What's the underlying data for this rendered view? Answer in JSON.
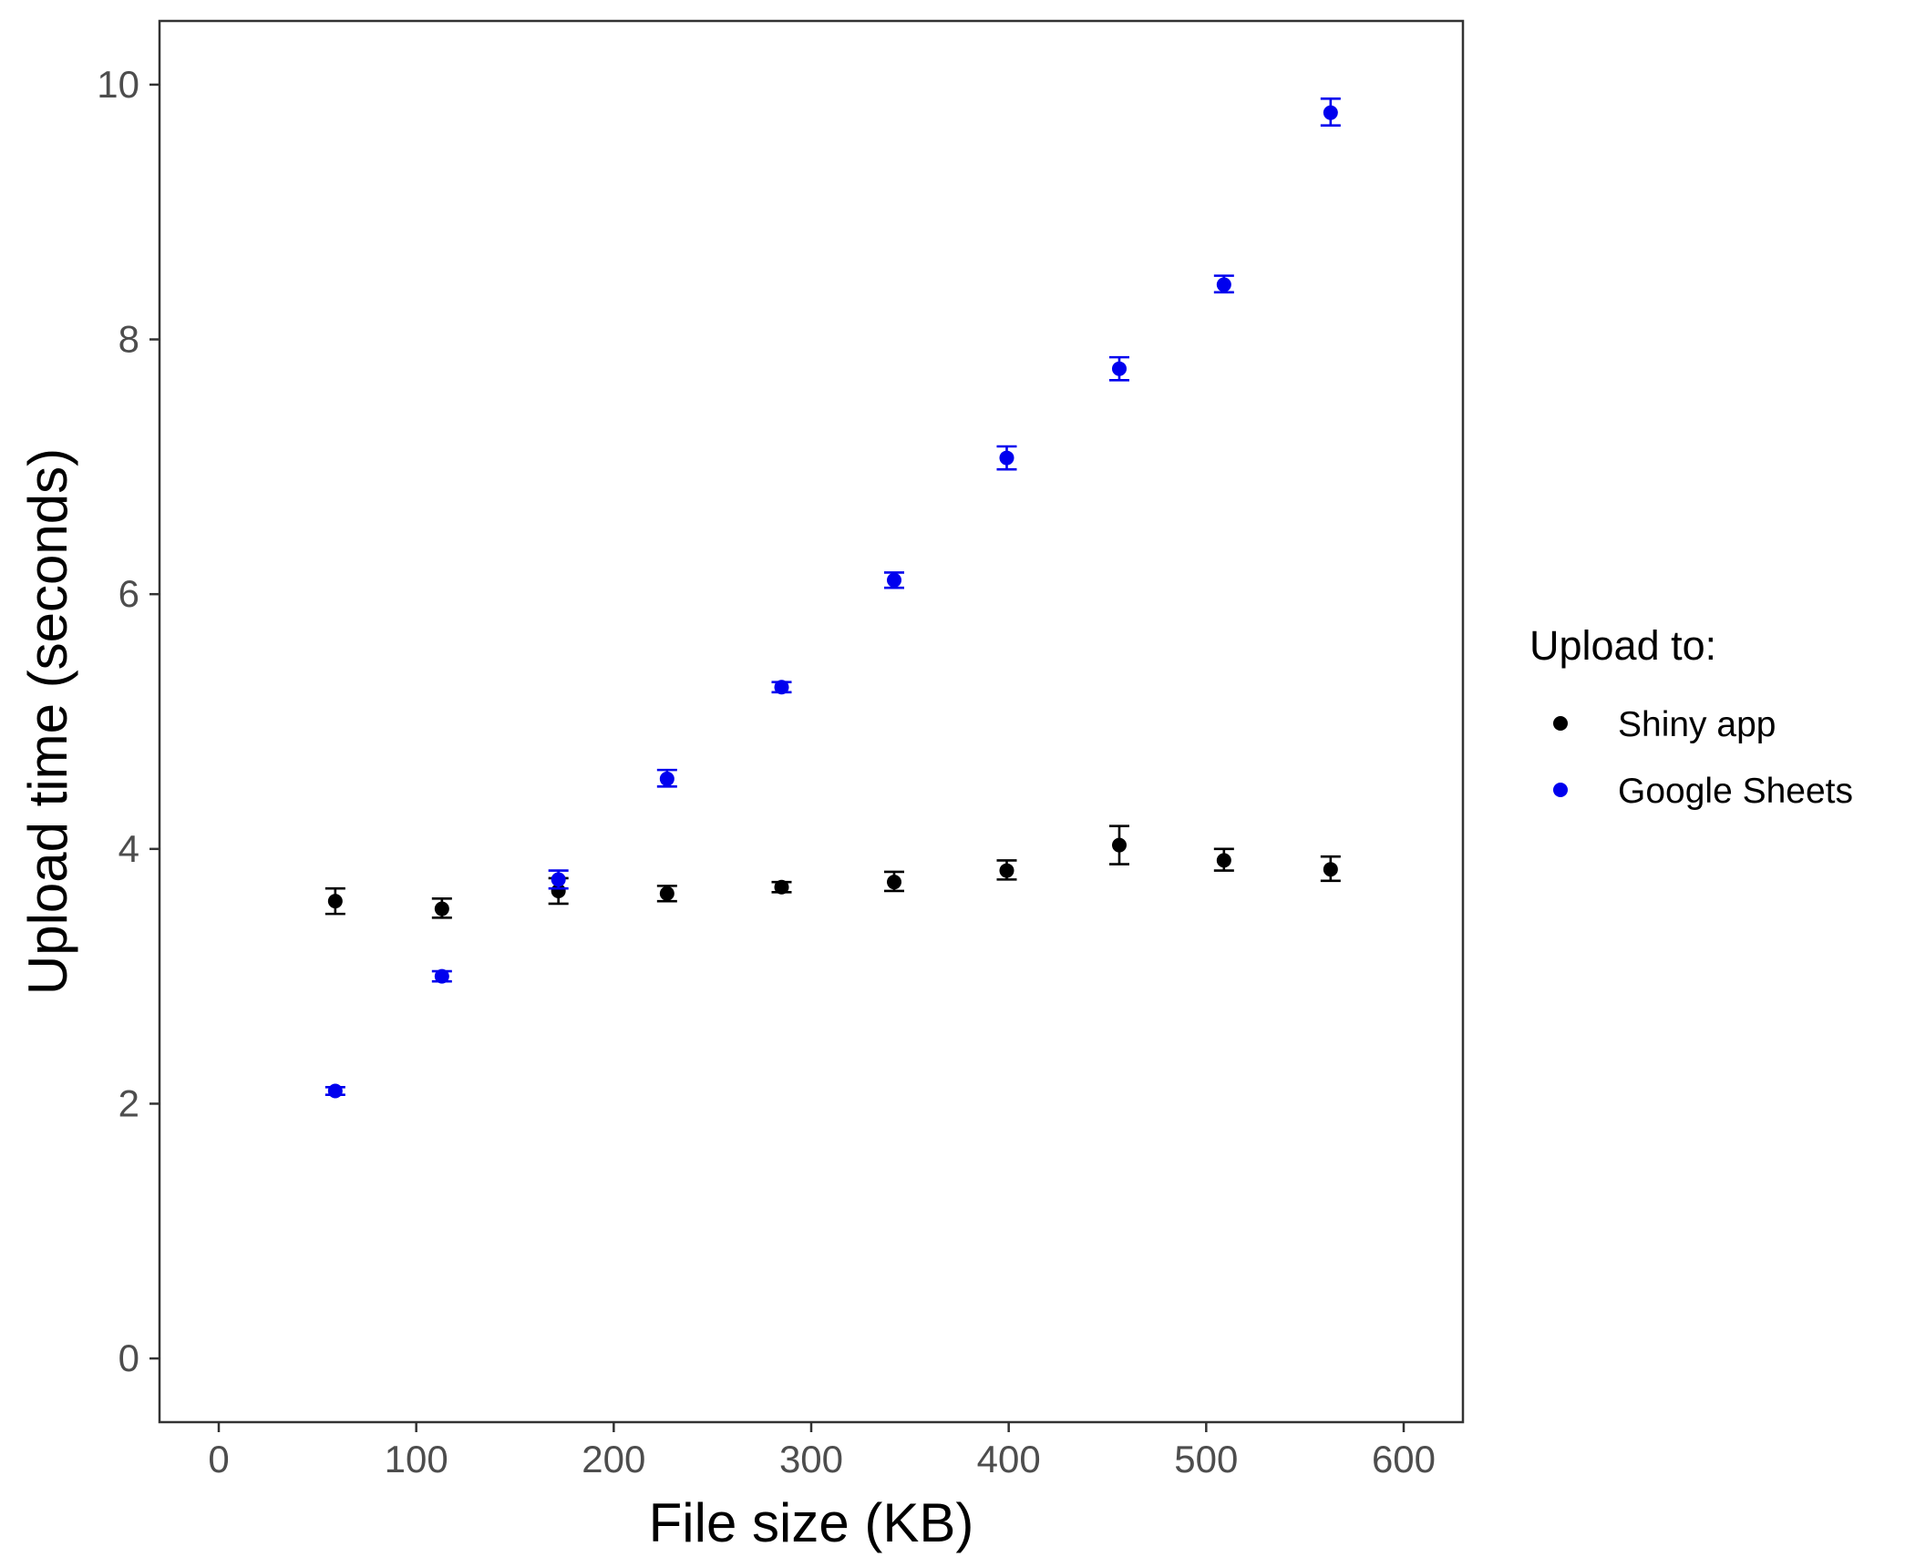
{
  "chart_data": {
    "type": "scatter",
    "xlabel": "File size (KB)",
    "ylabel": "Upload time (seconds)",
    "xlim": [
      -30,
      630
    ],
    "ylim": [
      -0.5,
      10.5
    ],
    "x_ticks": [
      0,
      100,
      200,
      300,
      400,
      500,
      600
    ],
    "y_ticks": [
      0,
      2,
      4,
      6,
      8,
      10
    ],
    "grid": false,
    "legend": {
      "title": "Upload to:",
      "placement": "right"
    },
    "error_bars": true,
    "series": [
      {
        "name": "Shiny app",
        "color": "#000000",
        "points": [
          {
            "x": 59,
            "y": 3.59,
            "lo": 3.49,
            "hi": 3.69
          },
          {
            "x": 113,
            "y": 3.53,
            "lo": 3.46,
            "hi": 3.61
          },
          {
            "x": 172,
            "y": 3.67,
            "lo": 3.57,
            "hi": 3.77
          },
          {
            "x": 227,
            "y": 3.65,
            "lo": 3.59,
            "hi": 3.71
          },
          {
            "x": 285,
            "y": 3.7,
            "lo": 3.66,
            "hi": 3.74
          },
          {
            "x": 342,
            "y": 3.74,
            "lo": 3.67,
            "hi": 3.82
          },
          {
            "x": 399,
            "y": 3.83,
            "lo": 3.76,
            "hi": 3.91
          },
          {
            "x": 456,
            "y": 4.03,
            "lo": 3.88,
            "hi": 4.18
          },
          {
            "x": 509,
            "y": 3.91,
            "lo": 3.83,
            "hi": 4.0
          },
          {
            "x": 563,
            "y": 3.84,
            "lo": 3.75,
            "hi": 3.94
          }
        ]
      },
      {
        "name": "Google Sheets",
        "color": "#0000ee",
        "points": [
          {
            "x": 59,
            "y": 2.1,
            "lo": 2.07,
            "hi": 2.13
          },
          {
            "x": 113,
            "y": 3.0,
            "lo": 2.96,
            "hi": 3.04
          },
          {
            "x": 172,
            "y": 3.76,
            "lo": 3.69,
            "hi": 3.83
          },
          {
            "x": 227,
            "y": 4.55,
            "lo": 4.49,
            "hi": 4.62
          },
          {
            "x": 285,
            "y": 5.27,
            "lo": 5.23,
            "hi": 5.31
          },
          {
            "x": 342,
            "y": 6.11,
            "lo": 6.05,
            "hi": 6.17
          },
          {
            "x": 399,
            "y": 7.07,
            "lo": 6.98,
            "hi": 7.16
          },
          {
            "x": 456,
            "y": 7.77,
            "lo": 7.68,
            "hi": 7.86
          },
          {
            "x": 509,
            "y": 8.43,
            "lo": 8.37,
            "hi": 8.5
          },
          {
            "x": 563,
            "y": 9.78,
            "lo": 9.68,
            "hi": 9.89
          }
        ]
      }
    ]
  }
}
